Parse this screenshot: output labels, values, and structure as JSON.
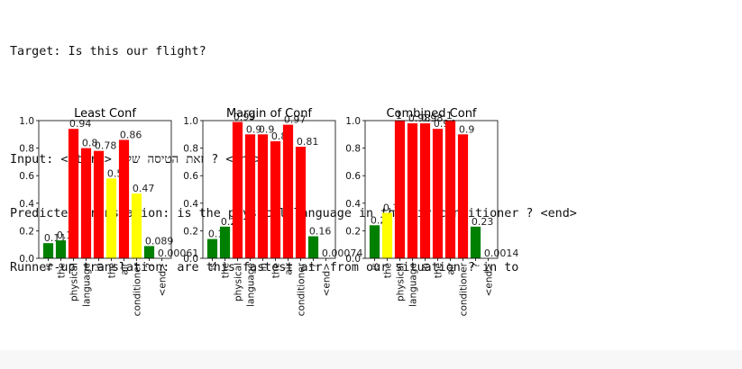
{
  "output": {
    "target": "Target: Is this our flight?",
    "input": "Input: <start> זאת הטיסה שלנו ? <end>",
    "predicted": "Predicted translation: is the physical language in the air conditioner ? <end>",
    "runner_up": "Runner-up translation: are this fastest air from our situation ? in to"
  },
  "colors": {
    "green": "#008000",
    "yellow": "#ffff00",
    "red": "#ff0000"
  },
  "chart_data": [
    {
      "type": "bar",
      "title": "Least Conf",
      "categories": [
        "is",
        "the",
        "physical",
        "language",
        "in",
        "the",
        "air",
        "conditioner",
        "?",
        "<end>"
      ],
      "values": [
        0.11,
        0.13,
        0.94,
        0.8,
        0.78,
        0.58,
        0.86,
        0.47,
        0.089,
        0.00061
      ],
      "labels": [
        "0.11",
        "0.13",
        "0.94",
        "0.8",
        "0.78",
        "0.58",
        "0.86",
        "0.47",
        "0.089",
        "0.00061"
      ],
      "bar_colors": [
        "green",
        "green",
        "red",
        "red",
        "red",
        "yellow",
        "red",
        "yellow",
        "green",
        "green"
      ],
      "ylim": [
        0,
        1.0
      ],
      "yticks": [
        "0.0",
        "0.2",
        "0.4",
        "0.6",
        "0.8",
        "1.0"
      ]
    },
    {
      "type": "bar",
      "title": "Margin of Conf",
      "categories": [
        "is",
        "the",
        "physical",
        "language",
        "in",
        "the",
        "air",
        "conditioner",
        "?",
        "<end>"
      ],
      "values": [
        0.14,
        0.23,
        0.99,
        0.9,
        0.9,
        0.85,
        0.97,
        0.81,
        0.16,
        0.00074
      ],
      "labels": [
        "0.14",
        "0.23",
        "0.99",
        "0.9",
        "0.9",
        "0.85",
        "0.97",
        "0.81",
        "0.16",
        "0.00074"
      ],
      "bar_colors": [
        "green",
        "green",
        "red",
        "red",
        "red",
        "red",
        "red",
        "red",
        "green",
        "green"
      ],
      "ylim": [
        0,
        1.0
      ],
      "yticks": [
        "0.0",
        "0.2",
        "0.4",
        "0.6",
        "0.8",
        "1.0"
      ]
    },
    {
      "type": "bar",
      "title": "Combined Conf",
      "categories": [
        "is",
        "the",
        "physical",
        "language",
        "in",
        "the",
        "air",
        "conditioner",
        "?",
        "<end>"
      ],
      "values": [
        0.24,
        0.33,
        1.0,
        0.98,
        0.98,
        0.94,
        1.0,
        0.9,
        0.23,
        0.0014
      ],
      "labels": [
        "0.24",
        "0.33",
        "1",
        "0.98",
        "0.98",
        "0.94",
        "1",
        "0.9",
        "0.23",
        "0.0014"
      ],
      "bar_colors": [
        "green",
        "yellow",
        "red",
        "red",
        "red",
        "red",
        "red",
        "red",
        "green",
        "green"
      ],
      "ylim": [
        0,
        1.0
      ],
      "yticks": [
        "0.0",
        "0.2",
        "0.4",
        "0.6",
        "0.8",
        "1.0"
      ]
    }
  ]
}
